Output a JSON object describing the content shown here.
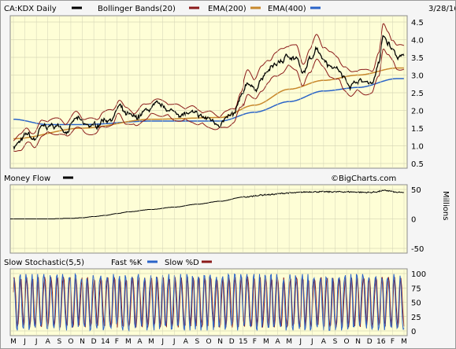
{
  "chart_data": [
    {
      "type": "line",
      "title": "CA:KDX Daily",
      "date": "3/28/16",
      "watermark": "©BigCharts.com",
      "legend": [
        {
          "label": "Bollinger Bands(20)",
          "color": "#8b1a1a"
        },
        {
          "label": "EMA(200)",
          "color": "#c8882c"
        },
        {
          "label": "EMA(400)",
          "color": "#2a64c8"
        }
      ],
      "series_color": "#000000",
      "ylim": [
        0.5,
        4.5
      ],
      "y_ticks": [
        "4.5",
        "4.0",
        "3.5",
        "3.0",
        "2.5",
        "2.0",
        "1.5",
        "1.0",
        "0.5"
      ],
      "x_months": [
        "M",
        "J",
        "J",
        "A",
        "S",
        "O",
        "N",
        "D",
        "14",
        "F",
        "M",
        "A",
        "M",
        "J",
        "J",
        "A",
        "S",
        "O",
        "N",
        "D",
        "15",
        "F",
        "M",
        "A",
        "M",
        "J",
        "J",
        "A",
        "S",
        "O",
        "N",
        "D",
        "16",
        "F",
        "M"
      ],
      "x_year_labels": [
        "14",
        "15",
        "16"
      ],
      "price_anchors": [
        {
          "m": 0,
          "v": 1.0
        },
        {
          "m": 0.6,
          "v": 1.1
        },
        {
          "m": 1.2,
          "v": 1.3
        },
        {
          "m": 1.8,
          "v": 1.15
        },
        {
          "m": 2.5,
          "v": 1.5
        },
        {
          "m": 3.2,
          "v": 1.55
        },
        {
          "m": 4.0,
          "v": 1.55
        },
        {
          "m": 4.6,
          "v": 1.45
        },
        {
          "m": 5.5,
          "v": 1.75
        },
        {
          "m": 6.3,
          "v": 1.55
        },
        {
          "m": 7.2,
          "v": 1.55
        },
        {
          "m": 7.8,
          "v": 1.75
        },
        {
          "m": 8.6,
          "v": 1.8
        },
        {
          "m": 9.2,
          "v": 2.1
        },
        {
          "m": 9.8,
          "v": 1.85
        },
        {
          "m": 10.6,
          "v": 1.75
        },
        {
          "m": 11.4,
          "v": 1.95
        },
        {
          "m": 12.3,
          "v": 2.1
        },
        {
          "m": 13.2,
          "v": 2.05
        },
        {
          "m": 14.0,
          "v": 1.95
        },
        {
          "m": 14.8,
          "v": 1.9
        },
        {
          "m": 15.5,
          "v": 1.9
        },
        {
          "m": 16.2,
          "v": 1.8
        },
        {
          "m": 17.0,
          "v": 1.75
        },
        {
          "m": 17.8,
          "v": 1.65
        },
        {
          "m": 18.5,
          "v": 1.75
        },
        {
          "m": 19.2,
          "v": 1.85
        },
        {
          "m": 19.8,
          "v": 2.3
        },
        {
          "m": 20.4,
          "v": 2.8
        },
        {
          "m": 21.0,
          "v": 2.6
        },
        {
          "m": 21.6,
          "v": 2.9
        },
        {
          "m": 22.2,
          "v": 3.1
        },
        {
          "m": 22.8,
          "v": 3.3
        },
        {
          "m": 23.4,
          "v": 3.4
        },
        {
          "m": 24.0,
          "v": 3.55
        },
        {
          "m": 24.6,
          "v": 3.5
        },
        {
          "m": 25.2,
          "v": 3.0
        },
        {
          "m": 25.8,
          "v": 3.4
        },
        {
          "m": 26.4,
          "v": 3.8
        },
        {
          "m": 27.0,
          "v": 3.5
        },
        {
          "m": 27.6,
          "v": 3.3
        },
        {
          "m": 28.2,
          "v": 3.2
        },
        {
          "m": 28.8,
          "v": 2.9
        },
        {
          "m": 29.4,
          "v": 2.75
        },
        {
          "m": 30.0,
          "v": 2.85
        },
        {
          "m": 30.6,
          "v": 2.8
        },
        {
          "m": 31.2,
          "v": 2.8
        },
        {
          "m": 31.8,
          "v": 3.3
        },
        {
          "m": 32.2,
          "v": 4.1
        },
        {
          "m": 32.6,
          "v": 3.9
        },
        {
          "m": 33.0,
          "v": 3.7
        },
        {
          "m": 33.4,
          "v": 3.5
        }
      ],
      "ema200_anchors": [
        {
          "m": 0,
          "v": 1.2
        },
        {
          "m": 6,
          "v": 1.5
        },
        {
          "m": 12,
          "v": 1.75
        },
        {
          "m": 18,
          "v": 1.8
        },
        {
          "m": 21,
          "v": 2.15
        },
        {
          "m": 24,
          "v": 2.6
        },
        {
          "m": 27,
          "v": 2.85
        },
        {
          "m": 30,
          "v": 3.0
        },
        {
          "m": 33.4,
          "v": 3.2
        }
      ],
      "ema400_anchors": [
        {
          "m": 0,
          "v": 1.75
        },
        {
          "m": 3,
          "v": 1.6
        },
        {
          "m": 6,
          "v": 1.6
        },
        {
          "m": 12,
          "v": 1.7
        },
        {
          "m": 18,
          "v": 1.7
        },
        {
          "m": 21,
          "v": 1.95
        },
        {
          "m": 24,
          "v": 2.25
        },
        {
          "m": 27,
          "v": 2.55
        },
        {
          "m": 30,
          "v": 2.65
        },
        {
          "m": 33.4,
          "v": 2.9
        }
      ]
    },
    {
      "type": "line",
      "title": "Money Flow",
      "unit_label": "Millions",
      "ylim": [
        -50,
        50
      ],
      "y_ticks": [
        "50",
        "0",
        "-50"
      ],
      "series_color": "#000000",
      "anchors": [
        {
          "m": 0,
          "v": 0
        },
        {
          "m": 3,
          "v": 0
        },
        {
          "m": 5,
          "v": 1
        },
        {
          "m": 6,
          "v": 2
        },
        {
          "m": 7,
          "v": 4
        },
        {
          "m": 8,
          "v": 6
        },
        {
          "m": 9,
          "v": 9
        },
        {
          "m": 10,
          "v": 12
        },
        {
          "m": 12,
          "v": 16
        },
        {
          "m": 14,
          "v": 20
        },
        {
          "m": 16,
          "v": 25
        },
        {
          "m": 18,
          "v": 30
        },
        {
          "m": 20,
          "v": 37
        },
        {
          "m": 22,
          "v": 41
        },
        {
          "m": 24,
          "v": 44
        },
        {
          "m": 26,
          "v": 46
        },
        {
          "m": 29,
          "v": 46
        },
        {
          "m": 31,
          "v": 45
        },
        {
          "m": 32.5,
          "v": 48
        },
        {
          "m": 33.4,
          "v": 45
        }
      ]
    },
    {
      "type": "line",
      "title": "Slow Stochastic(5,5)",
      "legend": [
        {
          "label": "Fast %K",
          "color": "#2a64c8"
        },
        {
          "label": "Slow %D",
          "color": "#8b1a1a"
        }
      ],
      "ylim": [
        0,
        100
      ],
      "y_ticks": [
        "100",
        "75",
        "50",
        "25",
        "0"
      ]
    }
  ]
}
